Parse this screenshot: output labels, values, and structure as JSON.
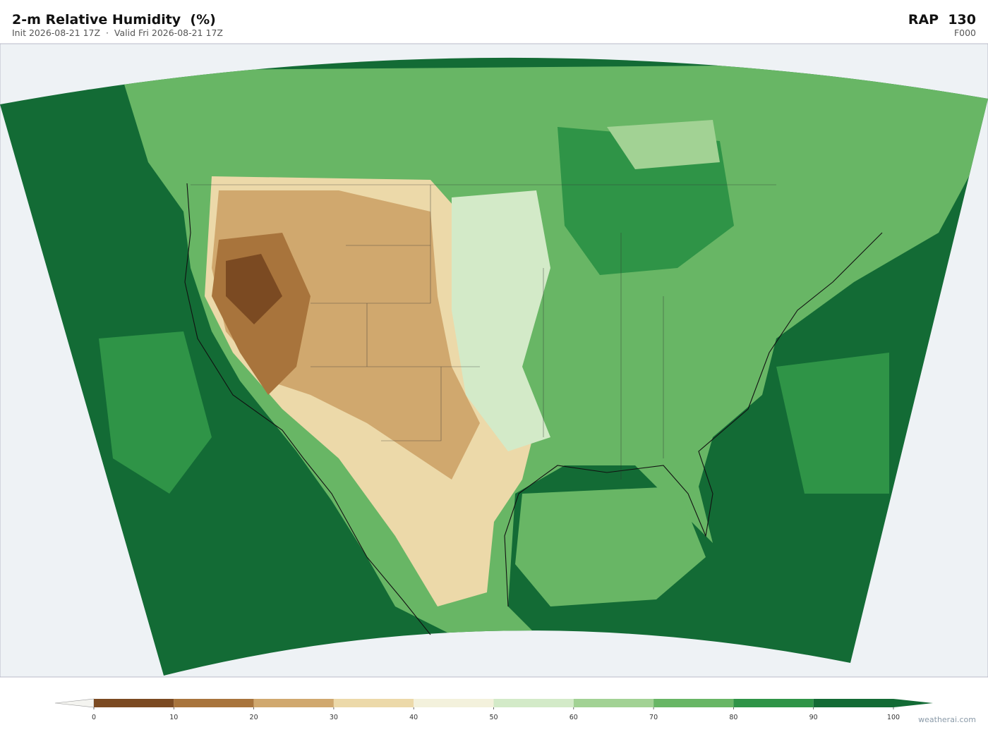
{
  "header": {
    "title": "2-m Relative Humidity  (%)",
    "subtitle": "Init 2026-08-21 17Z  ·  Valid Fri 2026-08-21 17Z",
    "model": "RAP  130",
    "forecast_hour": "F000"
  },
  "colorbar": {
    "range": [
      0,
      100
    ],
    "ticks": [
      0,
      10,
      20,
      30,
      40,
      50,
      60,
      70,
      80,
      90,
      100
    ],
    "colors": [
      "#7b4a22",
      "#a8743c",
      "#d0a86e",
      "#ecd9a9",
      "#f3f1dc",
      "#d3eac8",
      "#a2d294",
      "#68b665",
      "#2f9447",
      "#136b35"
    ],
    "under_color": "#f4f4f0",
    "over_color": "#136b35"
  },
  "credit": "weatherai.com"
}
